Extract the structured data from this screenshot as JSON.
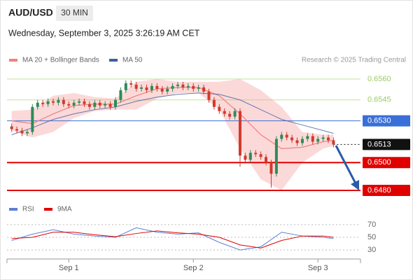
{
  "header": {
    "symbol": "AUD/USD",
    "interval": "30 MIN",
    "timestamp": "Wednesday, September 3, 2025 3:26:19 AM CET",
    "attribution": "Research © 2025 Trading Central"
  },
  "chart_data": {
    "type": "candlestick",
    "xlim": [
      -11.9,
      56.2
    ],
    "ylim": [
      0.6476,
      0.65665
    ],
    "xticks": [
      {
        "value": 0,
        "label": "Sep 1"
      },
      {
        "value": 24,
        "label": "Sep 2"
      },
      {
        "value": 48,
        "label": "Sep 3"
      }
    ],
    "up_color": "#2e8b57",
    "down_color": "#d03a2c",
    "candles": {
      "x": [
        -11,
        -10,
        -9,
        -8,
        -7,
        -6,
        -5,
        -4,
        -3,
        -2,
        -1,
        0,
        1,
        2,
        3,
        4,
        5,
        6,
        7,
        8,
        9,
        10,
        11,
        12,
        13,
        14,
        15,
        16,
        17,
        18,
        19,
        20,
        21,
        22,
        23,
        24,
        25,
        26,
        27,
        28,
        29,
        30,
        31,
        32,
        33,
        34,
        35,
        36,
        37,
        38,
        39,
        40,
        41,
        42,
        43,
        44,
        45,
        46,
        47,
        48,
        49,
        50,
        51
      ],
      "open": [
        0.6526,
        0.6524,
        0.6523,
        0.6521,
        0.6522,
        0.654,
        0.6543,
        0.6542,
        0.6544,
        0.6543,
        0.6545,
        0.6542,
        0.6541,
        0.6543,
        0.6544,
        0.6542,
        0.654,
        0.6543,
        0.6541,
        0.6542,
        0.654,
        0.6545,
        0.6552,
        0.6557,
        0.6556,
        0.6553,
        0.6554,
        0.6552,
        0.6555,
        0.6553,
        0.6551,
        0.6553,
        0.6555,
        0.6556,
        0.6554,
        0.6555,
        0.6553,
        0.6554,
        0.6551,
        0.6545,
        0.654,
        0.6537,
        0.6535,
        0.6533,
        0.6537,
        0.6505,
        0.6502,
        0.6507,
        0.6506,
        0.6504,
        0.65,
        0.6492,
        0.6517,
        0.652,
        0.6518,
        0.6516,
        0.6514,
        0.6517,
        0.6519,
        0.6515,
        0.6517,
        0.6518,
        0.6516
      ],
      "high": [
        0.6528,
        0.6526,
        0.6525,
        0.6524,
        0.6542,
        0.6545,
        0.6545,
        0.6546,
        0.6546,
        0.6547,
        0.6547,
        0.6544,
        0.6545,
        0.6546,
        0.6546,
        0.6544,
        0.6545,
        0.6545,
        0.6544,
        0.6544,
        0.6547,
        0.6554,
        0.6559,
        0.6559,
        0.6558,
        0.6556,
        0.6556,
        0.6557,
        0.6557,
        0.6555,
        0.6555,
        0.6557,
        0.6558,
        0.6558,
        0.6557,
        0.6557,
        0.6556,
        0.6556,
        0.6553,
        0.6547,
        0.6542,
        0.6539,
        0.6537,
        0.6539,
        0.6539,
        0.6507,
        0.6509,
        0.6509,
        0.6508,
        0.6506,
        0.6502,
        0.6519,
        0.6522,
        0.6522,
        0.652,
        0.6518,
        0.6519,
        0.6521,
        0.6521,
        0.6519,
        0.652,
        0.652,
        0.6518
      ],
      "low": [
        0.6522,
        0.6521,
        0.6519,
        0.6519,
        0.652,
        0.6538,
        0.654,
        0.654,
        0.6541,
        0.6541,
        0.654,
        0.6539,
        0.6539,
        0.6541,
        0.654,
        0.6538,
        0.6538,
        0.6539,
        0.6539,
        0.6538,
        0.6538,
        0.6543,
        0.655,
        0.6554,
        0.6551,
        0.6551,
        0.655,
        0.655,
        0.6551,
        0.6549,
        0.6549,
        0.6551,
        0.6553,
        0.6552,
        0.6552,
        0.6551,
        0.6551,
        0.6549,
        0.6543,
        0.6538,
        0.6535,
        0.6533,
        0.6531,
        0.6531,
        0.6497,
        0.65,
        0.65,
        0.6504,
        0.6502,
        0.6498,
        0.6482,
        0.649,
        0.6515,
        0.6516,
        0.6514,
        0.6512,
        0.6512,
        0.6515,
        0.6513,
        0.6513,
        0.6515,
        0.6514,
        0.6511
      ],
      "close": [
        0.6524,
        0.6523,
        0.6521,
        0.6522,
        0.654,
        0.6543,
        0.6542,
        0.6544,
        0.6543,
        0.6545,
        0.6542,
        0.6541,
        0.6543,
        0.6544,
        0.6542,
        0.654,
        0.6543,
        0.6541,
        0.6542,
        0.654,
        0.6545,
        0.6552,
        0.6557,
        0.6556,
        0.6553,
        0.6554,
        0.6552,
        0.6555,
        0.6553,
        0.6551,
        0.6553,
        0.6555,
        0.6556,
        0.6554,
        0.6555,
        0.6553,
        0.6554,
        0.6551,
        0.6545,
        0.654,
        0.6537,
        0.6535,
        0.6533,
        0.6537,
        0.6505,
        0.6502,
        0.6507,
        0.6506,
        0.6504,
        0.65,
        0.6492,
        0.6517,
        0.652,
        0.6518,
        0.6516,
        0.6514,
        0.6517,
        0.6519,
        0.6515,
        0.6517,
        0.6518,
        0.6516,
        0.6513
      ]
    },
    "overlay_x": [
      -11,
      -7,
      -3,
      1,
      5,
      9,
      13,
      17,
      21,
      25,
      29,
      33,
      37,
      41,
      45,
      49,
      51
    ],
    "overlays": [
      {
        "name": "MA 20 + Bollinger Bands",
        "color": "#f08080",
        "band_color": "#fbd0d0",
        "values": [
          0.653,
          0.6528,
          0.6535,
          0.6541,
          0.6542,
          0.6542,
          0.6548,
          0.6553,
          0.6554,
          0.6554,
          0.6548,
          0.6535,
          0.652,
          0.651,
          0.6511,
          0.6515,
          0.6516
        ],
        "upper": [
          0.6537,
          0.6538,
          0.6548,
          0.655,
          0.6547,
          0.6546,
          0.6558,
          0.656,
          0.6558,
          0.6558,
          0.6558,
          0.656,
          0.6552,
          0.654,
          0.6522,
          0.652,
          0.652
        ],
        "lower": [
          0.6523,
          0.6518,
          0.6522,
          0.6532,
          0.6537,
          0.6538,
          0.6538,
          0.6546,
          0.655,
          0.655,
          0.6538,
          0.651,
          0.6488,
          0.648,
          0.65,
          0.651,
          0.6512
        ]
      },
      {
        "name": "MA 50",
        "color": "#3f5f9f",
        "values": [
          0.652,
          0.6525,
          0.6531,
          0.6535,
          0.6538,
          0.654,
          0.6544,
          0.6547,
          0.6549,
          0.655,
          0.6549,
          0.6545,
          0.6538,
          0.6531,
          0.6527,
          0.6523,
          0.6521
        ]
      }
    ],
    "levels": [
      {
        "value": 0.656,
        "label": "0.6560",
        "color": "#9acd62",
        "box": false,
        "dash": false,
        "width": 1
      },
      {
        "value": 0.6545,
        "label": "0.6545",
        "color": "#9acd62",
        "box": false,
        "dash": false,
        "width": 1
      },
      {
        "value": 0.653,
        "label": "0.6530",
        "color": "#3a6fd8",
        "box": true,
        "dash": false,
        "width": 1
      },
      {
        "value": 0.6513,
        "label": "0.6513",
        "color": "#111111",
        "box": true,
        "dash": true,
        "width": 1
      },
      {
        "value": 0.65,
        "label": "0.6500",
        "color": "#e00000",
        "box": true,
        "dash": false,
        "width": 2
      },
      {
        "value": 0.648,
        "label": "0.6480",
        "color": "#e00000",
        "box": true,
        "dash": false,
        "width": 2
      }
    ],
    "rsi": {
      "ylim": [
        18,
        82
      ],
      "yticks": [
        70,
        50,
        30
      ],
      "series": [
        {
          "name": "RSI",
          "color": "#5b7fd6",
          "values": [
            45,
            55,
            62,
            55,
            52,
            50,
            65,
            58,
            55,
            57,
            42,
            30,
            35,
            58,
            52,
            50,
            48
          ]
        },
        {
          "name": "9MA",
          "color": "#e00000",
          "values": [
            48,
            50,
            58,
            58,
            54,
            51,
            56,
            60,
            57,
            55,
            50,
            38,
            33,
            45,
            52,
            52,
            50
          ]
        }
      ]
    }
  }
}
